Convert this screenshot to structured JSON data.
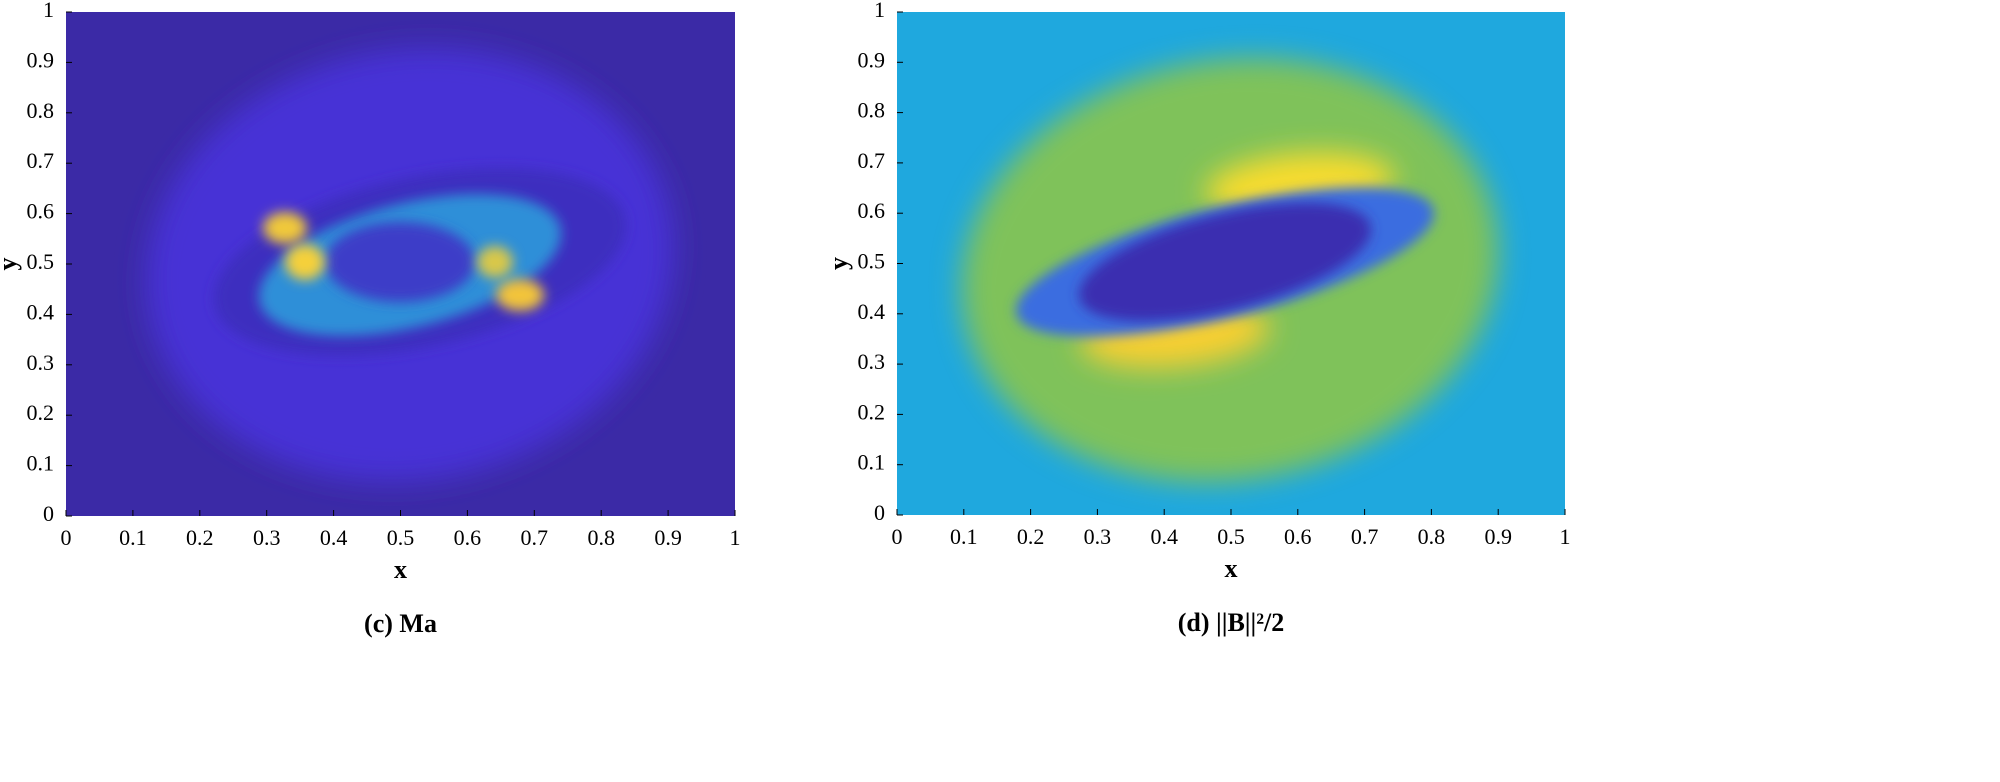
{
  "chart_data": [
    {
      "type": "heatmap",
      "caption": "(c) Ma",
      "xlabel": "x",
      "ylabel": "y",
      "xlim": [
        0,
        1
      ],
      "ylim": [
        0,
        1
      ],
      "xticks": [
        0,
        0.1,
        0.2,
        0.3,
        0.4,
        0.5,
        0.6,
        0.7,
        0.8,
        0.9,
        1
      ],
      "yticks": [
        0,
        0.1,
        0.2,
        0.3,
        0.4,
        0.5,
        0.6,
        0.7,
        0.8,
        0.9,
        1
      ],
      "background_color": "#3b2aa6"
    },
    {
      "type": "heatmap",
      "caption": "(d) ||B||²/2",
      "xlabel": "x",
      "ylabel": "y",
      "xlim": [
        0,
        1
      ],
      "ylim": [
        0,
        1
      ],
      "xticks": [
        0,
        0.1,
        0.2,
        0.3,
        0.4,
        0.5,
        0.6,
        0.7,
        0.8,
        0.9,
        1
      ],
      "yticks": [
        0,
        0.1,
        0.2,
        0.3,
        0.4,
        0.5,
        0.6,
        0.7,
        0.8,
        0.9,
        1
      ],
      "background_color": "#1fa8de"
    }
  ]
}
